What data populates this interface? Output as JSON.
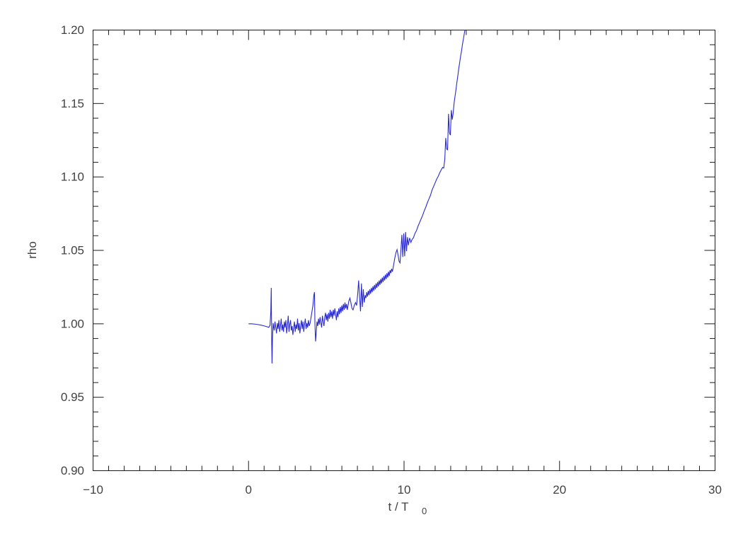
{
  "figure": {
    "background": "#ffffff",
    "axis_color": "#1c1c1c",
    "text_color": "#424242"
  },
  "chart_data": {
    "type": "line",
    "title": "",
    "xlabel": "t / T",
    "xlabel_subscript": "0",
    "ylabel": "rho",
    "xlim": [
      -10,
      30
    ],
    "ylim": [
      0.9,
      1.2
    ],
    "x_major_ticks": [
      -10,
      0,
      10,
      20,
      30
    ],
    "x_tick_labels": [
      "−10",
      "0",
      "10",
      "20",
      "30"
    ],
    "x_minor_step": 1,
    "y_major_ticks": [
      0.9,
      0.95,
      1.0,
      1.05,
      1.1,
      1.15,
      1.2
    ],
    "y_tick_labels": [
      "0.90",
      "0.95",
      "1.00",
      "1.05",
      "1.10",
      "1.15",
      "1.20"
    ],
    "y_minor_step": 0.01,
    "grid": false,
    "legend": null,
    "line_color": "#2a2ad0",
    "series": [
      {
        "name": "rho",
        "points": [
          [
            0,
            1.0
          ],
          [
            0.2,
            1.0
          ],
          [
            0.4,
            0.9998
          ],
          [
            0.6,
            0.9995
          ],
          [
            0.8,
            0.9991
          ],
          [
            1.0,
            0.9986
          ],
          [
            1.15,
            0.9981
          ],
          [
            1.3,
            0.9976
          ],
          [
            1.38,
            0.999
          ],
          [
            1.43,
            1.008
          ],
          [
            1.46,
            1.0245
          ],
          [
            1.49,
            0.986
          ],
          [
            1.51,
            0.973
          ],
          [
            1.54,
            0.99
          ],
          [
            1.58,
            1.0005
          ],
          [
            1.65,
            0.9955
          ],
          [
            1.7,
            1.0015
          ],
          [
            1.75,
            0.9975
          ],
          [
            1.8,
            0.9935
          ],
          [
            1.85,
            1.0005
          ],
          [
            1.9,
            0.9965
          ],
          [
            1.95,
            1.0025
          ],
          [
            2.0,
            0.9945
          ],
          [
            2.05,
            0.9985
          ],
          [
            2.1,
            1.0035
          ],
          [
            2.15,
            0.9955
          ],
          [
            2.2,
            0.9995
          ],
          [
            2.25,
            0.9945
          ],
          [
            2.3,
            1.0015
          ],
          [
            2.35,
            0.9975
          ],
          [
            2.4,
            1.0025
          ],
          [
            2.45,
            0.9935
          ],
          [
            2.5,
            0.9985
          ],
          [
            2.55,
            1.0055
          ],
          [
            2.6,
            0.9945
          ],
          [
            2.65,
            0.9995
          ],
          [
            2.7,
            1.0025
          ],
          [
            2.75,
            0.9955
          ],
          [
            2.8,
            0.9985
          ],
          [
            2.85,
            0.9925
          ],
          [
            2.9,
            0.9975
          ],
          [
            2.95,
            1.0015
          ],
          [
            3.0,
            0.9945
          ],
          [
            3.05,
            0.9995
          ],
          [
            3.1,
            0.9965
          ],
          [
            3.15,
            1.0035
          ],
          [
            3.2,
            0.9955
          ],
          [
            3.25,
            1.0005
          ],
          [
            3.3,
            0.9935
          ],
          [
            3.35,
            0.9985
          ],
          [
            3.4,
            1.0025
          ],
          [
            3.45,
            0.9965
          ],
          [
            3.5,
            1.0015
          ],
          [
            3.55,
            0.9945
          ],
          [
            3.6,
            0.9995
          ],
          [
            3.65,
            1.0035
          ],
          [
            3.7,
            0.9965
          ],
          [
            3.75,
            1.0005
          ],
          [
            3.8,
            0.9975
          ],
          [
            3.85,
            1.0025
          ],
          [
            3.9,
            0.9985
          ],
          [
            3.96,
            1.0005
          ],
          [
            4.02,
            1.0045
          ],
          [
            4.08,
            1.0085
          ],
          [
            4.14,
            1.0125
          ],
          [
            4.2,
            1.0195
          ],
          [
            4.24,
            1.0215
          ],
          [
            4.27,
            1.0
          ],
          [
            4.31,
            0.988
          ],
          [
            4.36,
            0.995
          ],
          [
            4.4,
            1.0015
          ],
          [
            4.45,
            0.9985
          ],
          [
            4.5,
            1.0035
          ],
          [
            4.55,
            0.9995
          ],
          [
            4.6,
            1.0045
          ],
          [
            4.65,
            1.0005
          ],
          [
            4.7,
            0.9975
          ],
          [
            4.75,
            1.0055
          ],
          [
            4.8,
            1.0015
          ],
          [
            4.85,
            0.9985
          ],
          [
            4.9,
            1.0045
          ],
          [
            4.95,
            1.0075
          ],
          [
            5.0,
            1.0025
          ],
          [
            5.05,
            1.0065
          ],
          [
            5.1,
            1.0015
          ],
          [
            5.15,
            1.0075
          ],
          [
            5.2,
            1.0035
          ],
          [
            5.25,
            1.0095
          ],
          [
            5.3,
            1.0045
          ],
          [
            5.35,
            1.0085
          ],
          [
            5.4,
            1.0035
          ],
          [
            5.45,
            1.0095
          ],
          [
            5.5,
            1.0055
          ],
          [
            5.55,
            1.0105
          ],
          [
            5.6,
            1.0065
          ],
          [
            5.65,
            1.0025
          ],
          [
            5.7,
            1.0085
          ],
          [
            5.75,
            1.0045
          ],
          [
            5.8,
            1.0105
          ],
          [
            5.85,
            1.0065
          ],
          [
            5.9,
            1.0115
          ],
          [
            5.95,
            1.0075
          ],
          [
            6.0,
            1.0125
          ],
          [
            6.05,
            1.0085
          ],
          [
            6.1,
            1.0135
          ],
          [
            6.15,
            1.0095
          ],
          [
            6.2,
            1.0145
          ],
          [
            6.25,
            1.0105
          ],
          [
            6.3,
            1.0135
          ],
          [
            6.35,
            1.0095
          ],
          [
            6.4,
            1.0125
          ],
          [
            6.45,
            1.0155
          ],
          [
            6.52,
            1.0175
          ],
          [
            6.58,
            1.0145
          ],
          [
            6.65,
            1.0105
          ],
          [
            6.72,
            1.0095
          ],
          [
            6.8,
            1.0125
          ],
          [
            6.88,
            1.0145
          ],
          [
            6.95,
            1.0125
          ],
          [
            7.02,
            1.0205
          ],
          [
            7.08,
            1.0295
          ],
          [
            7.14,
            1.0185
          ],
          [
            7.2,
            1.0085
          ],
          [
            7.26,
            1.0275
          ],
          [
            7.32,
            1.0115
          ],
          [
            7.38,
            1.0235
          ],
          [
            7.44,
            1.0145
          ],
          [
            7.5,
            1.0195
          ],
          [
            7.55,
            1.0175
          ],
          [
            7.6,
            1.0215
          ],
          [
            7.65,
            1.0185
          ],
          [
            7.7,
            1.0225
          ],
          [
            7.75,
            1.0195
          ],
          [
            7.8,
            1.0235
          ],
          [
            7.85,
            1.0205
          ],
          [
            7.9,
            1.0245
          ],
          [
            7.95,
            1.0215
          ],
          [
            8.0,
            1.0255
          ],
          [
            8.05,
            1.0225
          ],
          [
            8.1,
            1.0265
          ],
          [
            8.15,
            1.0235
          ],
          [
            8.2,
            1.0275
          ],
          [
            8.25,
            1.0245
          ],
          [
            8.3,
            1.0285
          ],
          [
            8.35,
            1.0255
          ],
          [
            8.4,
            1.0295
          ],
          [
            8.45,
            1.0265
          ],
          [
            8.5,
            1.0305
          ],
          [
            8.55,
            1.0275
          ],
          [
            8.6,
            1.0315
          ],
          [
            8.65,
            1.0285
          ],
          [
            8.7,
            1.0325
          ],
          [
            8.75,
            1.0295
          ],
          [
            8.8,
            1.0335
          ],
          [
            8.85,
            1.0305
          ],
          [
            8.9,
            1.0345
          ],
          [
            8.95,
            1.0315
          ],
          [
            9.0,
            1.0355
          ],
          [
            9.05,
            1.0325
          ],
          [
            9.1,
            1.0365
          ],
          [
            9.15,
            1.0345
          ],
          [
            9.2,
            1.0375
          ],
          [
            9.25,
            1.0355
          ],
          [
            9.32,
            1.0395
          ],
          [
            9.4,
            1.0445
          ],
          [
            9.48,
            1.0485
          ],
          [
            9.55,
            1.0505
          ],
          [
            9.62,
            1.0465
          ],
          [
            9.68,
            1.0425
          ],
          [
            9.74,
            1.0415
          ],
          [
            9.8,
            1.0505
          ],
          [
            9.86,
            1.0605
          ],
          [
            9.92,
            1.0455
          ],
          [
            9.98,
            1.0615
          ],
          [
            10.04,
            1.046
          ],
          [
            10.1,
            1.0625
          ],
          [
            10.16,
            1.0495
          ],
          [
            10.22,
            1.059
          ],
          [
            10.28,
            1.0535
          ],
          [
            10.36,
            1.0585
          ],
          [
            10.44,
            1.0555
          ],
          [
            10.52,
            1.0575
          ],
          [
            10.6,
            1.0585
          ],
          [
            10.7,
            1.0615
          ],
          [
            10.8,
            1.0635
          ],
          [
            10.9,
            1.0665
          ],
          [
            11.0,
            1.069
          ],
          [
            11.1,
            1.0715
          ],
          [
            11.2,
            1.074
          ],
          [
            11.3,
            1.077
          ],
          [
            11.4,
            1.0795
          ],
          [
            11.5,
            1.0825
          ],
          [
            11.6,
            1.085
          ],
          [
            11.7,
            1.0875
          ],
          [
            11.8,
            1.091
          ],
          [
            11.9,
            1.0935
          ],
          [
            12.0,
            1.096
          ],
          [
            12.1,
            1.0985
          ],
          [
            12.2,
            1.1005
          ],
          [
            12.3,
            1.103
          ],
          [
            12.4,
            1.105
          ],
          [
            12.48,
            1.1065
          ],
          [
            12.55,
            1.106
          ],
          [
            12.62,
            1.112
          ],
          [
            12.68,
            1.1265
          ],
          [
            12.74,
            1.119
          ],
          [
            12.8,
            1.1185
          ],
          [
            12.86,
            1.143
          ],
          [
            12.92,
            1.13
          ],
          [
            12.98,
            1.1285
          ],
          [
            13.04,
            1.1455
          ],
          [
            13.1,
            1.139
          ],
          [
            13.16,
            1.1435
          ],
          [
            13.22,
            1.1505
          ],
          [
            13.28,
            1.155
          ],
          [
            13.34,
            1.1595
          ],
          [
            13.4,
            1.1645
          ],
          [
            13.46,
            1.169
          ],
          [
            13.52,
            1.174
          ],
          [
            13.58,
            1.178
          ],
          [
            13.64,
            1.1825
          ],
          [
            13.7,
            1.186
          ],
          [
            13.76,
            1.1905
          ],
          [
            13.82,
            1.194
          ],
          [
            13.88,
            1.198
          ],
          [
            13.94,
            1.2015
          ],
          [
            14.0,
            1.205
          ]
        ]
      }
    ]
  }
}
